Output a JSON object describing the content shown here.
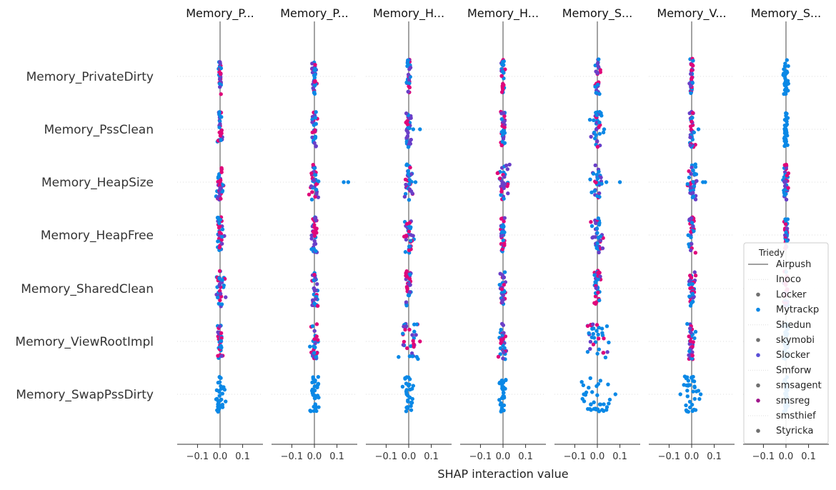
{
  "chart_data": {
    "type": "scatter",
    "subtype": "shap-interaction-summary",
    "xlabel": "SHAP interaction value",
    "xlim": [
      -0.19,
      0.19
    ],
    "x_ticks": [
      {
        "value": -0.1,
        "label": "−0.1"
      },
      {
        "value": 0.0,
        "label": "0.0"
      },
      {
        "value": 0.1,
        "label": "0.1"
      }
    ],
    "features": [
      "Memory_PrivateDirty",
      "Memory_PssClean",
      "Memory_HeapSize",
      "Memory_HeapFree",
      "Memory_SharedClean",
      "Memory_ViewRootImpl",
      "Memory_SwapPssDirty"
    ],
    "panel_titles": [
      "Memory_P...",
      "Memory_P...",
      "Memory_H...",
      "Memory_H...",
      "Memory_S...",
      "Memory_V...",
      "Memory_S..."
    ],
    "grid": "horizontal dotted",
    "legend": {
      "title": "Triedy",
      "position": "bottom-right",
      "items": [
        {
          "label": "Airpush",
          "marker": "line",
          "color": "#808080"
        },
        {
          "label": "Inoco",
          "marker": "none",
          "color": "#dddddd"
        },
        {
          "label": "Locker",
          "marker": "dot",
          "color": "#707070"
        },
        {
          "label": "Mytrackp",
          "marker": "dot",
          "color": "#0a88e6"
        },
        {
          "label": "Shedun",
          "marker": "none",
          "color": "#dddddd"
        },
        {
          "label": "skymobi",
          "marker": "dot",
          "color": "#707070"
        },
        {
          "label": "Slocker",
          "marker": "dot",
          "color": "#5a4fd6"
        },
        {
          "label": "Smforw",
          "marker": "none",
          "color": "#dddddd"
        },
        {
          "label": "smsagent",
          "marker": "dot",
          "color": "#707070"
        },
        {
          "label": "smsreg",
          "marker": "dot",
          "color": "#a0168c"
        },
        {
          "label": "smsthief",
          "marker": "none",
          "color": "#dddddd"
        },
        {
          "label": "Styricka",
          "marker": "dot",
          "color": "#707070"
        }
      ]
    },
    "colors": {
      "blue": "#0a88e6",
      "magenta": "#e0067a",
      "purple": "#6a3fc8",
      "zero_line": "#8c8c8c",
      "grid": "#dcdcdc"
    },
    "spread": [
      [
        0.004,
        0.004,
        0.005,
        0.004,
        0.005,
        0.004,
        0.006
      ],
      [
        0.005,
        0.006,
        0.007,
        0.005,
        0.012,
        0.006,
        0.004
      ],
      [
        0.009,
        0.011,
        0.008,
        0.012,
        0.014,
        0.01,
        0.005
      ],
      [
        0.008,
        0.006,
        0.01,
        0.006,
        0.013,
        0.006,
        0.004
      ],
      [
        0.01,
        0.007,
        0.007,
        0.006,
        0.006,
        0.008,
        0.004
      ],
      [
        0.006,
        0.01,
        0.018,
        0.008,
        0.03,
        0.008,
        0.006
      ],
      [
        0.01,
        0.012,
        0.011,
        0.008,
        0.035,
        0.02,
        0.005
      ]
    ],
    "outliers": [
      {
        "panel": 1,
        "feature": 2,
        "x": 0.13,
        "color": "blue"
      },
      {
        "panel": 1,
        "feature": 2,
        "x": 0.15,
        "color": "blue"
      },
      {
        "panel": 2,
        "feature": 1,
        "x": 0.05,
        "color": "blue"
      },
      {
        "panel": 2,
        "feature": 1,
        "x": 0.02,
        "color": "blue"
      },
      {
        "panel": 2,
        "feature": 2,
        "x": 0.03,
        "color": "blue"
      },
      {
        "panel": 2,
        "feature": 5,
        "x": 0.05,
        "color": "magenta"
      },
      {
        "panel": 4,
        "feature": 1,
        "x": 0.03,
        "color": "blue"
      },
      {
        "panel": 4,
        "feature": 2,
        "x": 0.04,
        "color": "blue"
      },
      {
        "panel": 4,
        "feature": 2,
        "x": 0.1,
        "color": "blue"
      },
      {
        "panel": 4,
        "feature": 6,
        "x": 0.08,
        "color": "blue"
      },
      {
        "panel": 4,
        "feature": 6,
        "x": -0.06,
        "color": "blue"
      },
      {
        "panel": 5,
        "feature": 1,
        "x": 0.03,
        "color": "blue"
      },
      {
        "panel": 5,
        "feature": 2,
        "x": 0.06,
        "color": "blue"
      },
      {
        "panel": 5,
        "feature": 2,
        "x": 0.05,
        "color": "blue"
      },
      {
        "panel": 5,
        "feature": 6,
        "x": 0.04,
        "color": "blue"
      },
      {
        "panel": 5,
        "feature": 6,
        "x": -0.05,
        "color": "blue"
      }
    ]
  }
}
